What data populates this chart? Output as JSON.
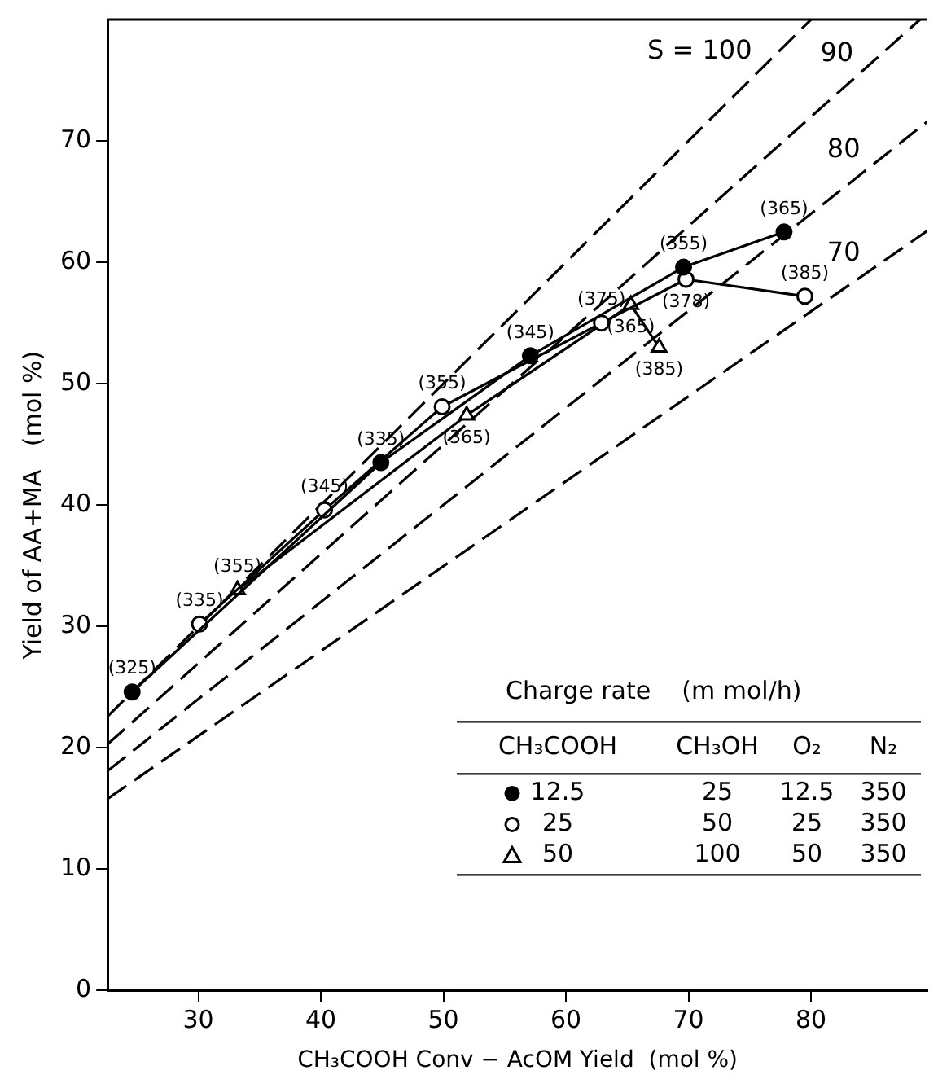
{
  "chart_data": {
    "type": "line",
    "xlabel": "CH₃COOH Conv − AcOM Yield  (mol %)",
    "ylabel": "Yield of AA+MA   (mol %)",
    "xlim": [
      22.6,
      89.5
    ],
    "xticks": [
      30,
      40,
      50,
      60,
      70,
      80
    ],
    "ylim": [
      0,
      80
    ],
    "yticks": [
      0,
      10,
      20,
      30,
      40,
      50,
      60,
      70
    ],
    "grid": false,
    "legend": "bottom right",
    "legend_title": "Charge rate    (m mol/h)",
    "series": [
      {
        "name": "12.5",
        "color": "#000000",
        "marker": "circle",
        "colors": [
          "#000000",
          "#000000",
          "#000000",
          "#000000",
          "#000000"
        ],
        "x": [
          24.6,
          44.9,
          57.1,
          69.6,
          77.8
        ],
        "values": [
          24.6,
          43.5,
          52.3,
          59.6,
          62.5
        ]
      },
      {
        "name": "25",
        "color": "#000000",
        "marker": "circle",
        "colors": [
          "#ffffff",
          "#ffffff",
          "#ffffff",
          "#ffffff",
          "#ffffff",
          "#ffffff"
        ],
        "x": [
          30.1,
          40.3,
          49.9,
          62.9,
          69.8,
          79.5
        ],
        "values": [
          30.2,
          39.6,
          48.1,
          55.0,
          58.6,
          57.2
        ]
      },
      {
        "name": "50",
        "color": "#000000",
        "marker": "triangle",
        "colors": [
          "#ffffff",
          "#ffffff",
          "#ffffff",
          "#ffffff"
        ],
        "x": [
          33.2,
          51.9,
          65.3,
          67.6
        ],
        "values": [
          33.0,
          47.4,
          56.5,
          53.0
        ]
      },
      {
        "name": "S = 100",
        "color": "#000000",
        "marker": "none",
        "line_style": "dashed",
        "x": [
          22.6,
          80
        ],
        "values": [
          22.6,
          80
        ]
      },
      {
        "name": "90",
        "color": "#000000",
        "marker": "none",
        "line_style": "dashed",
        "x": [
          22.6,
          88.9
        ],
        "values": [
          20.3,
          80
        ]
      },
      {
        "name": "80",
        "color": "#000000",
        "marker": "none",
        "line_style": "dashed",
        "x": [
          22.6,
          89.5
        ],
        "values": [
          18.1,
          71.6
        ]
      },
      {
        "name": "70",
        "color": "#000000",
        "marker": "none",
        "line_style": "dashed",
        "x": [
          22.6,
          89.5
        ],
        "values": [
          15.8,
          62.6
        ]
      }
    ],
    "annotations": [
      "CH₃COOH",
      "CH₃OH",
      "O₂",
      "N₂",
      "25",
      "12.5",
      "350",
      "50",
      "25",
      "350",
      "100",
      "50",
      "350",
      {
        "text": "(325)",
        "x": 24.6,
        "y": 24.6
      },
      {
        "text": "(335)",
        "x": 44.9,
        "y": 43.5
      },
      {
        "text": "(345)",
        "x": 57.1,
        "y": 52.3
      },
      {
        "text": "(355)",
        "x": 69.6,
        "y": 59.6
      },
      {
        "text": "(365)",
        "x": 77.8,
        "y": 62.5
      },
      {
        "text": "(335)",
        "x": 30.1,
        "y": 30.2
      },
      {
        "text": "(345)",
        "x": 40.3,
        "y": 39.6
      },
      {
        "text": "(355)",
        "x": 49.9,
        "y": 48.1
      },
      {
        "text": "(375)",
        "x": 62.9,
        "y": 55.0
      },
      {
        "text": "(378)",
        "x": 69.8,
        "y": 58.6
      },
      {
        "text": "(385)",
        "x": 79.5,
        "y": 57.2
      },
      {
        "text": "(355)",
        "x": 33.2,
        "y": 33.0
      },
      {
        "text": "(365)",
        "x": 51.9,
        "y": 47.4
      },
      {
        "text": "(365)",
        "x": 65.3,
        "y": 56.5
      },
      {
        "text": "(385)",
        "x": 67.6,
        "y": 53.0
      }
    ]
  }
}
